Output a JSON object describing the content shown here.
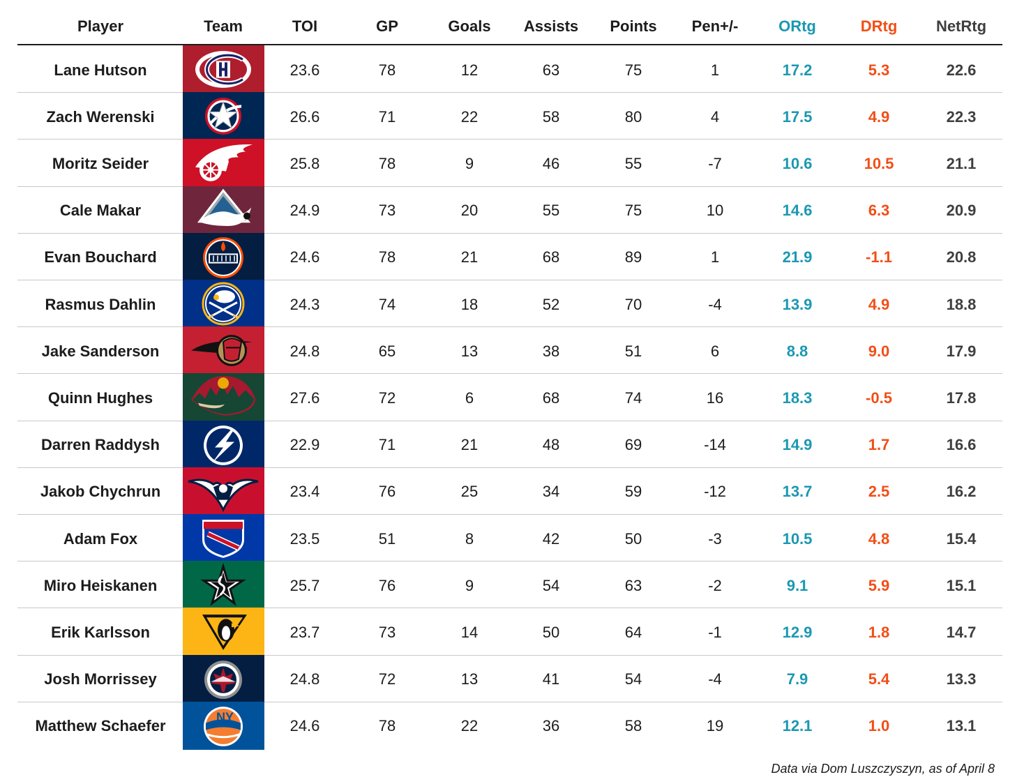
{
  "colors": {
    "ortg": "#1a98b2",
    "drtg": "#f24e16",
    "netrtg": "#3f3f3f",
    "text": "#1c1c1c"
  },
  "footnote": "Data via Dom Luszczyszyn, as of April 8",
  "chart_data": {
    "type": "table",
    "columns": [
      "Player",
      "Team",
      "TOI",
      "GP",
      "Goals",
      "Assists",
      "Points",
      "Pen+/-",
      "ORtg",
      "DRtg",
      "NetRtg"
    ],
    "rows": [
      {
        "player": "Lane Hutson",
        "team_logo": "montreal-canadiens-logo",
        "team_color": "#af1e2d",
        "toi": "23.6",
        "gp": "78",
        "goals": "12",
        "assists": "63",
        "points": "75",
        "pen": "1",
        "ortg": "17.2",
        "drtg": "5.3",
        "netrtg": "22.6"
      },
      {
        "player": "Zach Werenski",
        "team_logo": "columbus-blue-jackets-logo",
        "team_color": "#002654",
        "toi": "26.6",
        "gp": "71",
        "goals": "22",
        "assists": "58",
        "points": "80",
        "pen": "4",
        "ortg": "17.5",
        "drtg": "4.9",
        "netrtg": "22.3"
      },
      {
        "player": "Moritz Seider",
        "team_logo": "detroit-red-wings-logo",
        "team_color": "#ce1126",
        "toi": "25.8",
        "gp": "78",
        "goals": "9",
        "assists": "46",
        "points": "55",
        "pen": "-7",
        "ortg": "10.6",
        "drtg": "10.5",
        "netrtg": "21.1"
      },
      {
        "player": "Cale Makar",
        "team_logo": "colorado-avalanche-logo",
        "team_color": "#6f263d",
        "toi": "24.9",
        "gp": "73",
        "goals": "20",
        "assists": "55",
        "points": "75",
        "pen": "10",
        "ortg": "14.6",
        "drtg": "6.3",
        "netrtg": "20.9"
      },
      {
        "player": "Evan Bouchard",
        "team_logo": "edmonton-oilers-logo",
        "team_color": "#041e42",
        "toi": "24.6",
        "gp": "78",
        "goals": "21",
        "assists": "68",
        "points": "89",
        "pen": "1",
        "ortg": "21.9",
        "drtg": "-1.1",
        "netrtg": "20.8"
      },
      {
        "player": "Rasmus Dahlin",
        "team_logo": "buffalo-sabres-logo",
        "team_color": "#003087",
        "toi": "24.3",
        "gp": "74",
        "goals": "18",
        "assists": "52",
        "points": "70",
        "pen": "-4",
        "ortg": "13.9",
        "drtg": "4.9",
        "netrtg": "18.8"
      },
      {
        "player": "Jake Sanderson",
        "team_logo": "ottawa-senators-logo",
        "team_color": "#c52032",
        "toi": "24.8",
        "gp": "65",
        "goals": "13",
        "assists": "38",
        "points": "51",
        "pen": "6",
        "ortg": "8.8",
        "drtg": "9.0",
        "netrtg": "17.9"
      },
      {
        "player": "Quinn Hughes",
        "team_logo": "minnesota-wild-logo",
        "team_color": "#154734",
        "toi": "27.6",
        "gp": "72",
        "goals": "6",
        "assists": "68",
        "points": "74",
        "pen": "16",
        "ortg": "18.3",
        "drtg": "-0.5",
        "netrtg": "17.8"
      },
      {
        "player": "Darren Raddysh",
        "team_logo": "tampa-bay-lightning-logo",
        "team_color": "#002868",
        "toi": "22.9",
        "gp": "71",
        "goals": "21",
        "assists": "48",
        "points": "69",
        "pen": "-14",
        "ortg": "14.9",
        "drtg": "1.7",
        "netrtg": "16.6"
      },
      {
        "player": "Jakob Chychrun",
        "team_logo": "washington-capitals-logo",
        "team_color": "#c8102e",
        "toi": "23.4",
        "gp": "76",
        "goals": "25",
        "assists": "34",
        "points": "59",
        "pen": "-12",
        "ortg": "13.7",
        "drtg": "2.5",
        "netrtg": "16.2"
      },
      {
        "player": "Adam Fox",
        "team_logo": "new-york-rangers-logo",
        "team_color": "#0038a8",
        "toi": "23.5",
        "gp": "51",
        "goals": "8",
        "assists": "42",
        "points": "50",
        "pen": "-3",
        "ortg": "10.5",
        "drtg": "4.8",
        "netrtg": "15.4"
      },
      {
        "player": "Miro Heiskanen",
        "team_logo": "dallas-stars-logo",
        "team_color": "#006847",
        "toi": "25.7",
        "gp": "76",
        "goals": "9",
        "assists": "54",
        "points": "63",
        "pen": "-2",
        "ortg": "9.1",
        "drtg": "5.9",
        "netrtg": "15.1"
      },
      {
        "player": "Erik Karlsson",
        "team_logo": "pittsburgh-penguins-logo",
        "team_color": "#fcb514",
        "toi": "23.7",
        "gp": "73",
        "goals": "14",
        "assists": "50",
        "points": "64",
        "pen": "-1",
        "ortg": "12.9",
        "drtg": "1.8",
        "netrtg": "14.7"
      },
      {
        "player": "Josh Morrissey",
        "team_logo": "winnipeg-jets-logo",
        "team_color": "#041e42",
        "toi": "24.8",
        "gp": "72",
        "goals": "13",
        "assists": "41",
        "points": "54",
        "pen": "-4",
        "ortg": "7.9",
        "drtg": "5.4",
        "netrtg": "13.3"
      },
      {
        "player": "Matthew Schaefer",
        "team_logo": "new-york-islanders-logo",
        "team_color": "#00539b",
        "toi": "24.6",
        "gp": "78",
        "goals": "22",
        "assists": "36",
        "points": "58",
        "pen": "19",
        "ortg": "12.1",
        "drtg": "1.0",
        "netrtg": "13.1"
      }
    ]
  }
}
